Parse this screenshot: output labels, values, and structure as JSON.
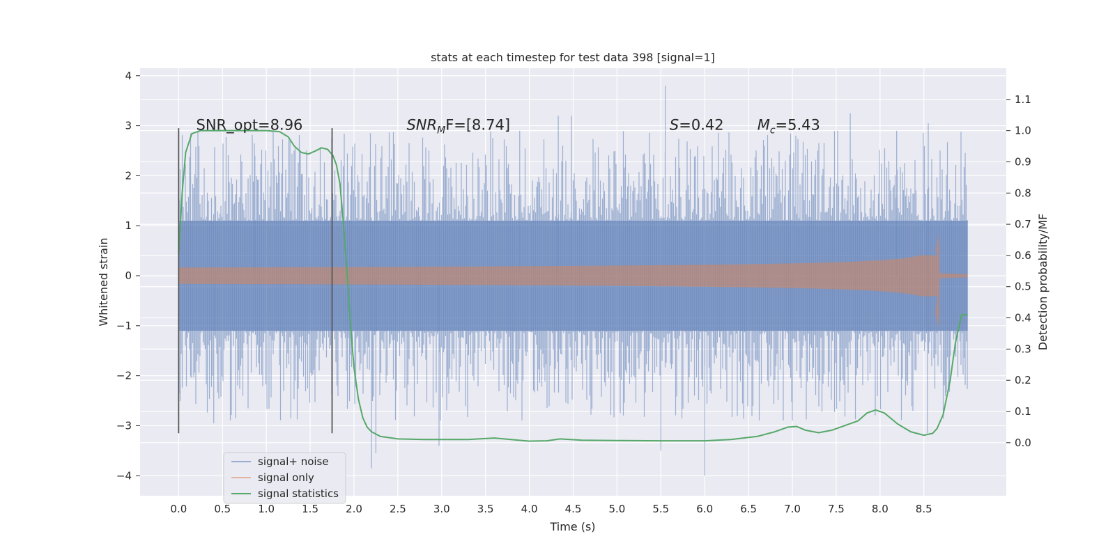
{
  "chart_data": {
    "type": "line",
    "title": "stats at each timestep for test data 398 [signal=1]",
    "xlabel": "Time (s)",
    "ylabel": "Whitened strain",
    "ylabel_right": "Detection probability/MF",
    "xlim": [
      -0.44,
      9.44
    ],
    "ylim": [
      -4.4,
      4.15
    ],
    "ylim_right": [
      -0.17,
      1.2
    ],
    "x_ticks": [
      "0.0",
      "0.5",
      "1.0",
      "1.5",
      "2.0",
      "2.5",
      "3.0",
      "3.5",
      "4.0",
      "4.5",
      "5.0",
      "5.5",
      "6.0",
      "6.5",
      "7.0",
      "7.5",
      "8.0",
      "8.5"
    ],
    "y_ticks": [
      "4",
      "3",
      "2",
      "1",
      "0",
      "−1",
      "−2",
      "−3",
      "−4"
    ],
    "y_tick_values": [
      4,
      3,
      2,
      1,
      0,
      -1,
      -2,
      -3,
      -4
    ],
    "y2_ticks": [
      "1.1",
      "1.0",
      "0.9",
      "0.8",
      "0.7",
      "0.6",
      "0.5",
      "0.4",
      "0.3",
      "0.2",
      "0.1",
      "0.0"
    ],
    "y2_tick_values": [
      1.1,
      1.0,
      0.9,
      0.8,
      0.7,
      0.6,
      0.5,
      0.4,
      0.3,
      0.2,
      0.1,
      0.0
    ],
    "grid": true,
    "legend_position": "lower-left",
    "annotations": [
      {
        "id": "snr-opt",
        "text": "SNR_opt=8.96",
        "x": 0.2,
        "y": 3.0
      },
      {
        "id": "snr-mf",
        "base": "SNR",
        "sub": "M",
        "tail": "F=[8.74]",
        "x": 2.6,
        "y": 3.0
      },
      {
        "id": "s",
        "base": "S",
        "tail": "=0.42",
        "x": 5.6,
        "y": 3.0
      },
      {
        "id": "mc",
        "base": "M",
        "sub": "c",
        "tail": "=5.43",
        "x": 6.6,
        "y": 3.0
      }
    ],
    "vlines": [
      0.0,
      1.75
    ],
    "vline_range": [
      -3.15,
      2.95
    ],
    "series": [
      {
        "name": "signal+ noise",
        "color": "#4c72b0",
        "axis": "left",
        "style": "noise",
        "t_range": [
          0.0,
          9.0
        ],
        "core_amplitude": 1.1,
        "peak_extremes": [
          {
            "t": 0.22,
            "v": 2.9
          },
          {
            "t": 0.87,
            "v": 2.4
          },
          {
            "t": 1.27,
            "v": 2.7
          },
          {
            "t": 3.89,
            "v": 2.9
          },
          {
            "t": 4.33,
            "v": 3.2
          },
          {
            "t": 4.48,
            "v": 3.2
          },
          {
            "t": 5.55,
            "v": 3.8
          },
          {
            "t": 7.66,
            "v": 3.25
          },
          {
            "t": 8.19,
            "v": 2.9
          },
          {
            "t": 8.55,
            "v": 3.05
          },
          {
            "t": 2.2,
            "v": -3.85
          },
          {
            "t": 2.25,
            "v": -3.55
          },
          {
            "t": 2.97,
            "v": -3.4
          },
          {
            "t": 5.5,
            "v": -3.5
          },
          {
            "t": 6.0,
            "v": -4.0
          },
          {
            "t": 7.0,
            "v": -2.9
          },
          {
            "t": 8.54,
            "v": -3.15
          },
          {
            "t": 0.4,
            "v": -2.95
          },
          {
            "t": 1.28,
            "v": -2.85
          }
        ]
      },
      {
        "name": "signal only",
        "color": "#dd8452",
        "axis": "left",
        "style": "chirp",
        "t_range": [
          0.0,
          8.68
        ],
        "merger_time": 8.67,
        "peak_amplitude": 0.82,
        "peak_min": -1.05
      },
      {
        "name": "signal statistics",
        "color": "#55a868",
        "axis": "right",
        "style": "line",
        "points": [
          [
            0.0,
            0.6
          ],
          [
            0.04,
            0.8
          ],
          [
            0.08,
            0.93
          ],
          [
            0.15,
            0.99
          ],
          [
            0.25,
            1.0
          ],
          [
            0.4,
            1.0
          ],
          [
            0.7,
            1.0
          ],
          [
            1.0,
            1.0
          ],
          [
            1.15,
            0.997
          ],
          [
            1.25,
            0.98
          ],
          [
            1.32,
            0.95
          ],
          [
            1.4,
            0.93
          ],
          [
            1.48,
            0.925
          ],
          [
            1.56,
            0.935
          ],
          [
            1.63,
            0.945
          ],
          [
            1.7,
            0.94
          ],
          [
            1.76,
            0.92
          ],
          [
            1.8,
            0.89
          ],
          [
            1.84,
            0.83
          ],
          [
            1.88,
            0.7
          ],
          [
            1.92,
            0.55
          ],
          [
            1.96,
            0.38
          ],
          [
            2.0,
            0.24
          ],
          [
            2.05,
            0.14
          ],
          [
            2.1,
            0.08
          ],
          [
            2.15,
            0.05
          ],
          [
            2.2,
            0.035
          ],
          [
            2.3,
            0.02
          ],
          [
            2.5,
            0.012
          ],
          [
            2.8,
            0.01
          ],
          [
            3.3,
            0.01
          ],
          [
            3.6,
            0.015
          ],
          [
            4.0,
            0.005
          ],
          [
            4.2,
            0.006
          ],
          [
            4.35,
            0.012
          ],
          [
            4.6,
            0.008
          ],
          [
            5.0,
            0.007
          ],
          [
            5.5,
            0.006
          ],
          [
            6.0,
            0.006
          ],
          [
            6.3,
            0.01
          ],
          [
            6.6,
            0.02
          ],
          [
            6.8,
            0.035
          ],
          [
            6.95,
            0.05
          ],
          [
            7.05,
            0.052
          ],
          [
            7.15,
            0.04
          ],
          [
            7.3,
            0.032
          ],
          [
            7.45,
            0.04
          ],
          [
            7.6,
            0.055
          ],
          [
            7.75,
            0.07
          ],
          [
            7.85,
            0.095
          ],
          [
            7.95,
            0.105
          ],
          [
            8.05,
            0.095
          ],
          [
            8.2,
            0.06
          ],
          [
            8.35,
            0.035
          ],
          [
            8.5,
            0.024
          ],
          [
            8.6,
            0.03
          ],
          [
            8.65,
            0.045
          ],
          [
            8.72,
            0.09
          ],
          [
            8.8,
            0.2
          ],
          [
            8.86,
            0.32
          ],
          [
            8.93,
            0.41
          ],
          [
            9.0,
            0.41
          ]
        ]
      }
    ]
  }
}
